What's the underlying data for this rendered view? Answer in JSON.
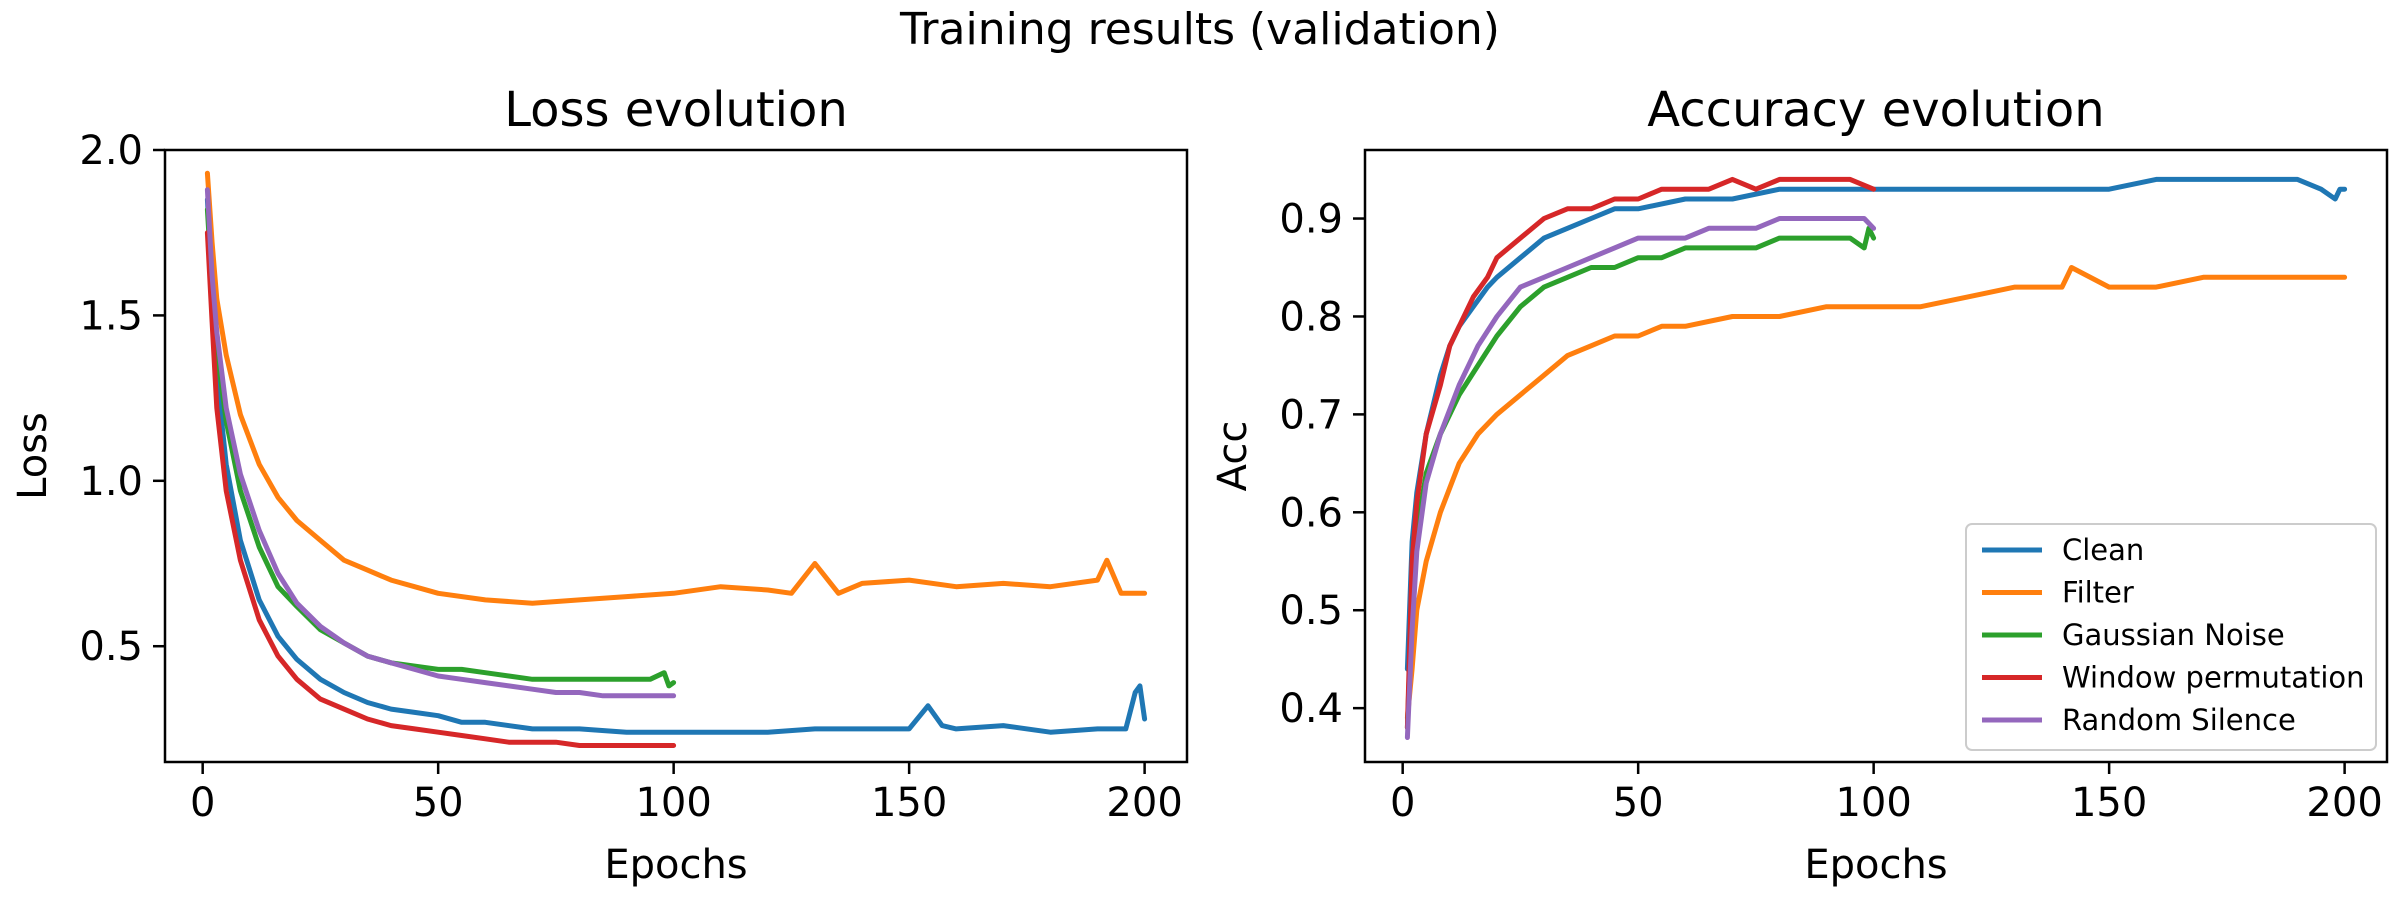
{
  "figure": {
    "suptitle": "Training results (validation)"
  },
  "chart_data": [
    {
      "type": "line",
      "title": "Loss evolution",
      "xlabel": "Epochs",
      "ylabel": "Loss",
      "xlim": [
        -8,
        209
      ],
      "ylim": [
        0.15,
        2.0
      ],
      "xticks": [
        0,
        50,
        100,
        150,
        200
      ],
      "yticks": [
        0.5,
        1.0,
        1.5,
        2.0
      ],
      "grid": false,
      "series": [
        {
          "name": "Clean",
          "color": "#1f77b4",
          "x": [
            1,
            2,
            3,
            5,
            8,
            12,
            16,
            20,
            25,
            30,
            35,
            40,
            45,
            50,
            55,
            60,
            70,
            80,
            90,
            100,
            110,
            120,
            130,
            140,
            150,
            154,
            157,
            160,
            170,
            180,
            190,
            196,
            198,
            199,
            200
          ],
          "y": [
            1.85,
            1.6,
            1.32,
            1.05,
            0.82,
            0.64,
            0.53,
            0.46,
            0.4,
            0.36,
            0.33,
            0.31,
            0.3,
            0.29,
            0.27,
            0.27,
            0.25,
            0.25,
            0.24,
            0.24,
            0.24,
            0.24,
            0.25,
            0.25,
            0.25,
            0.32,
            0.26,
            0.25,
            0.26,
            0.24,
            0.25,
            0.25,
            0.36,
            0.38,
            0.28
          ]
        },
        {
          "name": "Filter",
          "color": "#ff7f0e",
          "x": [
            1,
            2,
            3,
            5,
            8,
            12,
            16,
            20,
            25,
            30,
            35,
            40,
            45,
            50,
            60,
            70,
            80,
            90,
            100,
            110,
            120,
            125,
            130,
            135,
            140,
            150,
            160,
            170,
            180,
            190,
            192,
            195,
            200
          ],
          "y": [
            1.93,
            1.72,
            1.55,
            1.38,
            1.2,
            1.05,
            0.95,
            0.88,
            0.82,
            0.76,
            0.73,
            0.7,
            0.68,
            0.66,
            0.64,
            0.63,
            0.64,
            0.65,
            0.66,
            0.68,
            0.67,
            0.66,
            0.75,
            0.66,
            0.69,
            0.7,
            0.68,
            0.69,
            0.68,
            0.7,
            0.76,
            0.66,
            0.66
          ]
        },
        {
          "name": "Gaussian Noise",
          "color": "#2ca02c",
          "x": [
            1,
            2,
            3,
            5,
            8,
            12,
            16,
            20,
            25,
            30,
            35,
            40,
            45,
            50,
            55,
            60,
            65,
            70,
            75,
            80,
            85,
            90,
            95,
            98,
            99,
            100
          ],
          "y": [
            1.82,
            1.58,
            1.4,
            1.18,
            0.97,
            0.8,
            0.68,
            0.62,
            0.55,
            0.51,
            0.47,
            0.45,
            0.44,
            0.43,
            0.43,
            0.42,
            0.41,
            0.4,
            0.4,
            0.4,
            0.4,
            0.4,
            0.4,
            0.42,
            0.38,
            0.39
          ]
        },
        {
          "name": "Window permutation",
          "color": "#d62728",
          "x": [
            1,
            2,
            3,
            5,
            8,
            12,
            16,
            20,
            25,
            30,
            35,
            40,
            45,
            50,
            55,
            60,
            65,
            70,
            75,
            80,
            85,
            90,
            95,
            100
          ],
          "y": [
            1.75,
            1.48,
            1.22,
            0.97,
            0.76,
            0.58,
            0.47,
            0.4,
            0.34,
            0.31,
            0.28,
            0.26,
            0.25,
            0.24,
            0.23,
            0.22,
            0.21,
            0.21,
            0.21,
            0.2,
            0.2,
            0.2,
            0.2,
            0.2
          ]
        },
        {
          "name": "Random Silence",
          "color": "#9467bd",
          "x": [
            1,
            2,
            3,
            5,
            8,
            12,
            16,
            20,
            25,
            30,
            35,
            40,
            45,
            50,
            55,
            60,
            65,
            70,
            75,
            80,
            85,
            90,
            95,
            100
          ],
          "y": [
            1.88,
            1.62,
            1.45,
            1.22,
            1.02,
            0.85,
            0.72,
            0.63,
            0.56,
            0.51,
            0.47,
            0.45,
            0.43,
            0.41,
            0.4,
            0.39,
            0.38,
            0.37,
            0.36,
            0.36,
            0.35,
            0.35,
            0.35,
            0.35
          ]
        }
      ]
    },
    {
      "type": "line",
      "title": "Accuracy evolution",
      "xlabel": "Epochs",
      "ylabel": "Acc",
      "xlim": [
        -8,
        209
      ],
      "ylim": [
        0.345,
        0.97
      ],
      "xticks": [
        0,
        50,
        100,
        150,
        200
      ],
      "yticks": [
        0.4,
        0.5,
        0.6,
        0.7,
        0.8,
        0.9
      ],
      "grid": false,
      "legend": "lower right",
      "series": [
        {
          "name": "Clean",
          "color": "#1f77b4",
          "x": [
            1,
            2,
            3,
            5,
            8,
            10,
            12,
            15,
            18,
            20,
            25,
            30,
            35,
            40,
            45,
            50,
            60,
            70,
            80,
            90,
            100,
            110,
            120,
            130,
            140,
            150,
            160,
            170,
            180,
            190,
            195,
            198,
            199,
            200
          ],
          "y": [
            0.44,
            0.57,
            0.62,
            0.68,
            0.74,
            0.77,
            0.79,
            0.81,
            0.83,
            0.84,
            0.86,
            0.88,
            0.89,
            0.9,
            0.91,
            0.91,
            0.92,
            0.92,
            0.93,
            0.93,
            0.93,
            0.93,
            0.93,
            0.93,
            0.93,
            0.93,
            0.94,
            0.94,
            0.94,
            0.94,
            0.93,
            0.92,
            0.93,
            0.93
          ]
        },
        {
          "name": "Filter",
          "color": "#ff7f0e",
          "x": [
            1,
            2,
            3,
            5,
            8,
            12,
            16,
            20,
            25,
            30,
            35,
            40,
            45,
            50,
            55,
            60,
            70,
            80,
            90,
            100,
            110,
            120,
            130,
            140,
            142,
            150,
            160,
            170,
            180,
            190,
            195,
            200
          ],
          "y": [
            0.39,
            0.44,
            0.5,
            0.55,
            0.6,
            0.65,
            0.68,
            0.7,
            0.72,
            0.74,
            0.76,
            0.77,
            0.78,
            0.78,
            0.79,
            0.79,
            0.8,
            0.8,
            0.81,
            0.81,
            0.81,
            0.82,
            0.83,
            0.83,
            0.85,
            0.83,
            0.83,
            0.84,
            0.84,
            0.84,
            0.84,
            0.84
          ]
        },
        {
          "name": "Gaussian Noise",
          "color": "#2ca02c",
          "x": [
            1,
            2,
            3,
            5,
            8,
            12,
            16,
            20,
            25,
            30,
            35,
            40,
            45,
            50,
            55,
            60,
            65,
            70,
            75,
            80,
            85,
            90,
            95,
            98,
            99,
            100
          ],
          "y": [
            0.38,
            0.52,
            0.58,
            0.64,
            0.68,
            0.72,
            0.75,
            0.78,
            0.81,
            0.83,
            0.84,
            0.85,
            0.85,
            0.86,
            0.86,
            0.87,
            0.87,
            0.87,
            0.87,
            0.88,
            0.88,
            0.88,
            0.88,
            0.87,
            0.89,
            0.88
          ]
        },
        {
          "name": "Window permutation",
          "color": "#d62728",
          "x": [
            1,
            2,
            3,
            5,
            8,
            10,
            12,
            15,
            18,
            20,
            25,
            30,
            35,
            40,
            45,
            50,
            55,
            60,
            65,
            70,
            75,
            80,
            85,
            90,
            95,
            100
          ],
          "y": [
            0.38,
            0.55,
            0.61,
            0.68,
            0.73,
            0.77,
            0.79,
            0.82,
            0.84,
            0.86,
            0.88,
            0.9,
            0.91,
            0.91,
            0.92,
            0.92,
            0.93,
            0.93,
            0.93,
            0.94,
            0.93,
            0.94,
            0.94,
            0.94,
            0.94,
            0.93
          ]
        },
        {
          "name": "Random Silence",
          "color": "#9467bd",
          "x": [
            1,
            2,
            3,
            5,
            8,
            12,
            16,
            20,
            25,
            30,
            35,
            40,
            45,
            50,
            55,
            60,
            65,
            70,
            75,
            80,
            85,
            90,
            95,
            98,
            100
          ],
          "y": [
            0.37,
            0.48,
            0.56,
            0.63,
            0.68,
            0.73,
            0.77,
            0.8,
            0.83,
            0.84,
            0.85,
            0.86,
            0.87,
            0.88,
            0.88,
            0.88,
            0.89,
            0.89,
            0.89,
            0.9,
            0.9,
            0.9,
            0.9,
            0.9,
            0.89
          ]
        }
      ]
    }
  ]
}
